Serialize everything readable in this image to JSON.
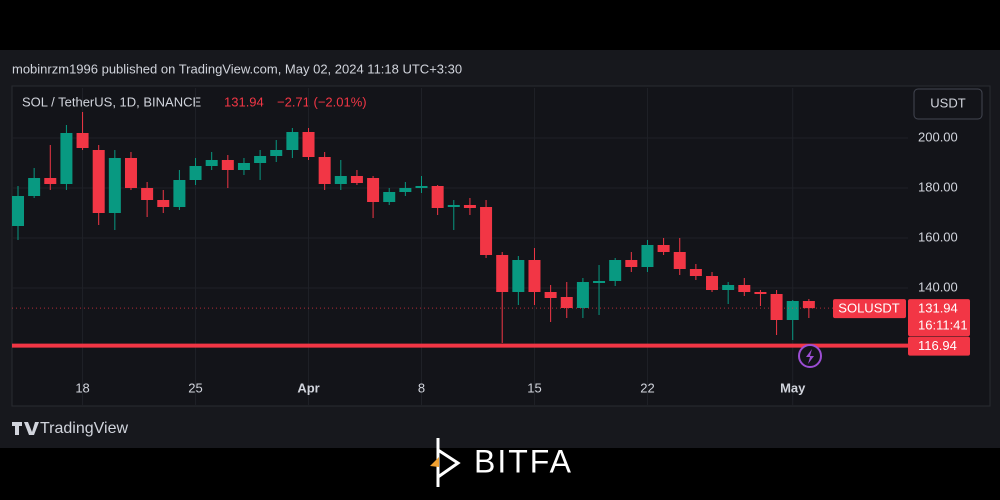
{
  "header": {
    "published": "mobinrzm1996 published on TradingView.com, May 02, 2024 11:18 UTC+3:30",
    "symbol": "SOL / TetherUS, 1D, BINANCE",
    "change": "−2.71 (−2.01%)",
    "currency": "USDT"
  },
  "chart_data": {
    "type": "candlestick",
    "categories": [
      null,
      null,
      null,
      null,
      "18",
      null,
      null,
      null,
      null,
      null,
      null,
      "25",
      null,
      null,
      null,
      null,
      null,
      null,
      "Apr",
      null,
      null,
      null,
      null,
      null,
      null,
      "8",
      null,
      null,
      null,
      null,
      null,
      null,
      "15",
      null,
      null,
      null,
      null,
      null,
      null,
      "22",
      null,
      null,
      null,
      null,
      null,
      null,
      null,
      null,
      "May",
      null
    ],
    "open": [
      164.8,
      176.8,
      184,
      181.6,
      202,
      195.2,
      170,
      192,
      180,
      175.2,
      172.4,
      183.2,
      188.8,
      191.2,
      187.2,
      190,
      192.8,
      195.2,
      202.4,
      192.4,
      181.6,
      184.8,
      184,
      174.4,
      178.4,
      180,
      180.8,
      172.4,
      173.2,
      172.4,
      153.2,
      138.4,
      151.2,
      138.4,
      136.4,
      132,
      142,
      142.8,
      151.2,
      148.4,
      157.2,
      154.4,
      147.6,
      144.8,
      139.2,
      141.2,
      138.4,
      137.6,
      127.2,
      134.8
    ],
    "high": [
      180.8,
      188,
      197.2,
      205.2,
      210.4,
      197.2,
      195.2,
      194.4,
      182.4,
      179.2,
      187.2,
      192,
      194.4,
      193.2,
      192,
      195.2,
      199.2,
      204,
      204,
      194.4,
      191.2,
      187.2,
      184.8,
      180,
      182.4,
      184.8,
      181.2,
      175.2,
      176,
      175.2,
      154.4,
      152.8,
      156,
      141.2,
      142.4,
      144,
      149.2,
      152,
      154.4,
      159.2,
      160,
      160,
      149.6,
      146.4,
      142.4,
      144,
      139.2,
      139.2,
      135.2,
      135.6
    ],
    "low": [
      159.2,
      176,
      179.2,
      179.2,
      195.2,
      165.2,
      163.2,
      179.2,
      168.4,
      170,
      171.2,
      181.2,
      187.2,
      180,
      185.2,
      183.2,
      190.4,
      192,
      191.2,
      179.2,
      179.2,
      181.2,
      168,
      173.2,
      176.8,
      178,
      169.2,
      163.2,
      169.2,
      152,
      118,
      133.2,
      133.2,
      126.4,
      128,
      128,
      129.2,
      140.8,
      146.4,
      146.4,
      153.2,
      145.2,
      143.2,
      138.4,
      133.6,
      136.8,
      132.8,
      121.2,
      119.2,
      128
    ],
    "close": [
      176.8,
      184,
      181.6,
      202,
      196,
      170,
      192,
      180,
      175.2,
      172.4,
      183.2,
      188.8,
      191.2,
      187.2,
      190,
      192.8,
      195.2,
      202.4,
      192.4,
      181.6,
      184.8,
      182,
      174.4,
      178.4,
      180,
      180.8,
      172,
      173.2,
      172,
      153.2,
      138.4,
      151.2,
      138.4,
      136,
      132,
      142.4,
      142.8,
      151.2,
      148.4,
      157.2,
      154.4,
      147.6,
      144.8,
      139.2,
      141.2,
      138.4,
      137.6,
      127.2,
      134.8,
      131.94
    ],
    "up_color": "#089981",
    "down_color": "#f23645",
    "ylim": [
      93.2,
      220
    ],
    "yticks": [
      {
        "value": 140,
        "label": "140.00"
      },
      {
        "value": 160,
        "label": "160.00"
      },
      {
        "value": 180,
        "label": "180.00"
      },
      {
        "value": 200,
        "label": "200.00"
      }
    ],
    "grid": true,
    "last_price": 131.94,
    "last_price_symbol": "SOLUSDT",
    "countdown": "16:11:41",
    "level": 116.94,
    "level_color": "#f23645"
  },
  "footer": {
    "tradingview": "TradingView",
    "brand": "BITFA"
  }
}
